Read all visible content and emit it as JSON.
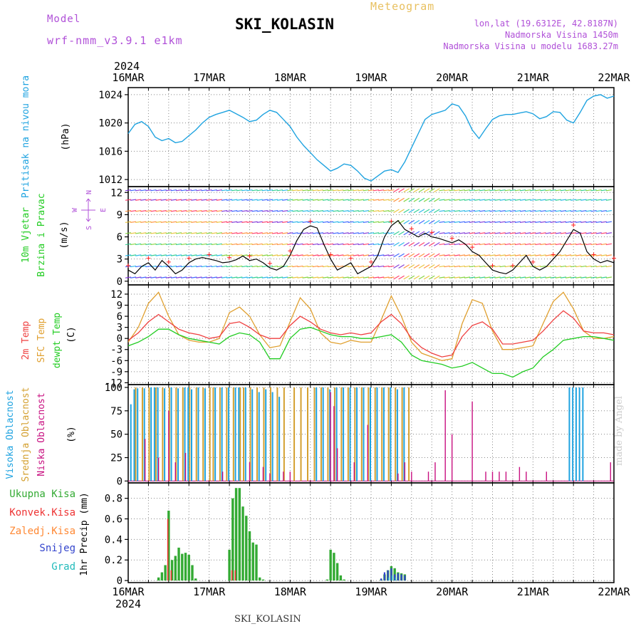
{
  "header": {
    "model_label": "Model",
    "model_value": "wrf-nmm_v3.9.1 e1km",
    "title": "SKI_KOLASIN",
    "meteogram": "Meteogram",
    "lonlat": "lon,lat (19.6312E, 42.8187N)",
    "altitude": "Nadmorska Visina 1450m",
    "model_altitude": "Nadmorska Visina u modelu 1683.27m",
    "footer_station": "SKI_KOLASIN",
    "watermark": "made by Angel"
  },
  "colors": {
    "pressure": "#1fa3e0",
    "wind_speed": "#000000",
    "wind_gust_marker": "#ff2020",
    "temp_2m": "#ef4040",
    "temp_sfc": "#e0a030",
    "dewpoint": "#22cc22",
    "cloud_high": "#1fa3e0",
    "cloud_mid": "#d4a030",
    "cloud_low": "#c81080",
    "precip_total": "#33aa33",
    "precip_conv": "#ee3333",
    "precip_frozen": "#ff8833",
    "precip_snow": "#3344cc",
    "precip_hail": "#22bbbb",
    "label_violet": "#b050d8"
  },
  "chart_data": [
    {
      "type": "line",
      "panel": "pressure",
      "title": "",
      "ylabel_lines": [
        "Pritisak na nivou mora",
        "(hPa)"
      ],
      "ylim": [
        1011,
        1025
      ],
      "yticks": [
        "1012",
        "1016",
        "1020",
        "1024"
      ],
      "ytick_values": [
        1012,
        1016,
        1020,
        1024
      ],
      "x_labels_top": [
        "16MAR",
        "17MAR",
        "18MAR",
        "19MAR",
        "20MAR",
        "21MAR",
        "22MAR"
      ],
      "x_year_top": "2024",
      "grid": true,
      "series": [
        {
          "name": "",
          "x_hours": [
            0,
            2,
            4,
            6,
            8,
            10,
            12,
            14,
            16,
            18,
            20,
            22,
            24,
            26,
            28,
            30,
            32,
            34,
            36,
            38,
            40,
            42,
            44,
            46,
            48,
            50,
            52,
            54,
            56,
            58,
            60,
            62,
            64,
            66,
            68,
            70,
            72,
            74,
            76,
            78,
            80,
            82,
            84,
            86,
            88,
            90,
            92,
            94,
            96,
            98,
            100,
            102,
            104,
            106,
            108,
            110,
            112,
            114,
            116,
            118,
            120,
            122,
            124,
            126,
            128,
            130,
            132,
            134,
            136,
            138,
            140,
            142,
            144
          ],
          "values": [
            1018.5,
            1019.8,
            1020.2,
            1019.5,
            1018.0,
            1017.5,
            1017.8,
            1017.2,
            1017.4,
            1018.2,
            1019.0,
            1020.0,
            1020.8,
            1021.2,
            1021.5,
            1021.8,
            1021.3,
            1020.8,
            1020.2,
            1020.4,
            1021.2,
            1021.8,
            1021.5,
            1020.5,
            1019.5,
            1018.0,
            1016.8,
            1015.8,
            1014.8,
            1014.0,
            1013.2,
            1013.6,
            1014.2,
            1014.0,
            1013.2,
            1012.2,
            1011.8,
            1012.5,
            1013.2,
            1013.4,
            1013.0,
            1014.5,
            1016.5,
            1018.5,
            1020.5,
            1021.2,
            1021.5,
            1021.8,
            1022.7,
            1022.4,
            1021.0,
            1019.0,
            1017.8,
            1019.2,
            1020.5,
            1021.0,
            1021.2,
            1021.2,
            1021.4,
            1021.6,
            1021.3,
            1020.6,
            1020.9,
            1021.6,
            1021.5,
            1020.4,
            1020.0,
            1021.5,
            1023.2,
            1023.8,
            1024.0,
            1023.5,
            1023.8
          ]
        }
      ]
    },
    {
      "type": "line",
      "panel": "wind",
      "title": "",
      "ylabel_lines": [
        "10m Vjetar",
        "Brzina i Pravac",
        "(m/s)"
      ],
      "compass": {
        "n": "N",
        "s": "S",
        "e": "E",
        "w": "W"
      },
      "ylim": [
        -0.5,
        12.8
      ],
      "yticks": [
        "0",
        "3",
        "6",
        "9",
        "12"
      ],
      "ytick_values": [
        0,
        3,
        6,
        9,
        12
      ],
      "grid": true,
      "series": [
        {
          "name": "",
          "x_hours": [
            0,
            2,
            4,
            6,
            8,
            10,
            12,
            14,
            16,
            18,
            20,
            22,
            24,
            26,
            28,
            30,
            32,
            34,
            36,
            38,
            40,
            42,
            44,
            46,
            48,
            50,
            52,
            54,
            56,
            58,
            60,
            62,
            64,
            66,
            68,
            70,
            72,
            74,
            76,
            78,
            80,
            82,
            84,
            86,
            88,
            90,
            92,
            94,
            96,
            98,
            100,
            102,
            104,
            106,
            108,
            110,
            112,
            114,
            116,
            118,
            120,
            122,
            124,
            126,
            128,
            130,
            132,
            134,
            136,
            138,
            140,
            142,
            144
          ],
          "values": [
            1.5,
            1.0,
            2.0,
            2.5,
            1.5,
            2.8,
            2.0,
            1.0,
            1.5,
            2.5,
            3.0,
            3.2,
            3.0,
            2.8,
            2.5,
            2.6,
            2.9,
            3.4,
            2.8,
            3.0,
            2.5,
            1.8,
            1.5,
            2.0,
            3.5,
            5.5,
            7.0,
            7.5,
            7.2,
            5.0,
            3.0,
            1.5,
            2.0,
            2.5,
            1.0,
            1.5,
            2.0,
            3.5,
            6.0,
            7.5,
            8.2,
            7.0,
            6.5,
            6.0,
            6.5,
            6.0,
            5.8,
            5.5,
            5.2,
            5.6,
            5.0,
            4.0,
            3.5,
            2.5,
            1.5,
            1.2,
            1.0,
            1.5,
            2.5,
            3.5,
            2.0,
            1.5,
            2.0,
            3.0,
            4.0,
            5.5,
            7.0,
            6.5,
            4.0,
            3.0,
            2.5,
            2.8,
            2.5
          ]
        }
      ]
    },
    {
      "type": "line",
      "panel": "temperature",
      "title": "",
      "ylabel_lines": [
        "2m Temp",
        "SFC Temp",
        "dewpt Temp",
        "(C)"
      ],
      "ylim": [
        -12.5,
        14.5
      ],
      "yticks": [
        "-12",
        "-9",
        "-6",
        "-3",
        "0",
        "3",
        "6",
        "9",
        "12"
      ],
      "ytick_values": [
        -12,
        -9,
        -6,
        -3,
        0,
        3,
        6,
        9,
        12
      ],
      "grid": true,
      "x_hours": [
        0,
        3,
        6,
        9,
        12,
        15,
        18,
        21,
        24,
        27,
        30,
        33,
        36,
        39,
        42,
        45,
        48,
        51,
        54,
        57,
        60,
        63,
        66,
        69,
        72,
        75,
        78,
        81,
        84,
        87,
        90,
        93,
        96,
        99,
        102,
        105,
        108,
        111,
        114,
        117,
        120,
        123,
        126,
        129,
        132,
        135,
        138,
        141,
        144
      ],
      "series": [
        {
          "name": "2m Temp",
          "values": [
            -0.5,
            1.5,
            4.5,
            6.5,
            4.5,
            2.5,
            1.5,
            1.0,
            0.0,
            0.5,
            4.0,
            4.5,
            3.0,
            1.0,
            0.0,
            0.0,
            3.5,
            6.0,
            4.5,
            2.5,
            1.5,
            1.0,
            1.5,
            1.0,
            1.5,
            4.5,
            6.5,
            4.0,
            0.0,
            -2.5,
            -4.0,
            -5.0,
            -4.5,
            0.5,
            3.5,
            4.5,
            2.5,
            -1.5,
            -1.5,
            -1.0,
            -0.5,
            2.0,
            5.0,
            7.5,
            5.5,
            2.0,
            1.5,
            1.5,
            1.0
          ]
        },
        {
          "name": "SFC Temp",
          "values": [
            -1.0,
            3.0,
            9.5,
            12.5,
            6.0,
            1.0,
            -0.5,
            -1.0,
            -1.0,
            0.0,
            7.0,
            8.5,
            6.0,
            1.0,
            -2.5,
            -2.0,
            4.5,
            11.0,
            8.0,
            1.5,
            -1.0,
            -1.5,
            -0.5,
            -1.0,
            -1.0,
            5.0,
            11.5,
            6.0,
            -1.0,
            -4.0,
            -5.0,
            -6.0,
            -5.5,
            4.0,
            10.5,
            9.5,
            2.0,
            -3.0,
            -3.0,
            -2.5,
            -2.0,
            4.0,
            10.0,
            12.5,
            8.0,
            2.0,
            0.0,
            0.0,
            0.5
          ]
        },
        {
          "name": "dewpt Temp",
          "values": [
            -2.0,
            -1.0,
            0.5,
            2.5,
            2.5,
            1.0,
            0.0,
            -0.5,
            -1.0,
            -1.5,
            0.5,
            1.5,
            1.0,
            -1.0,
            -5.5,
            -5.5,
            0.0,
            2.5,
            3.0,
            2.0,
            1.0,
            0.5,
            0.5,
            0.0,
            0.0,
            0.5,
            1.0,
            -1.0,
            -4.5,
            -6.0,
            -6.5,
            -7.0,
            -8.0,
            -7.5,
            -6.5,
            -8.0,
            -9.5,
            -9.5,
            -10.5,
            -9.0,
            -8.0,
            -5.0,
            -3.0,
            -0.5,
            0.0,
            0.5,
            0.5,
            0.0,
            -0.5
          ]
        }
      ]
    },
    {
      "type": "bar",
      "panel": "clouds",
      "title": "",
      "ylabel_lines": [
        "Visoka Oblacnost",
        "Srednja Oblacnost",
        "Niska Oblacnost",
        "(%)"
      ],
      "ylim": [
        -2,
        103
      ],
      "yticks": [
        "0",
        "25",
        "50",
        "75",
        "100"
      ],
      "ytick_values": [
        0,
        25,
        50,
        75,
        100
      ],
      "grid": true,
      "series": [
        {
          "name": "Visoka Oblacnost",
          "x_hours": [
            1,
            2,
            3,
            5,
            7,
            8,
            9,
            11,
            13,
            15,
            17,
            18,
            19,
            21,
            23,
            26,
            28,
            30,
            32,
            33,
            35,
            37,
            39,
            41,
            43,
            45,
            56,
            58,
            60,
            62,
            64,
            66,
            68,
            70,
            72,
            74,
            76,
            78,
            80,
            82,
            131,
            132,
            133,
            134,
            135
          ],
          "values": [
            82,
            98,
            99,
            99,
            100,
            100,
            100,
            99,
            100,
            99,
            100,
            100,
            98,
            100,
            99,
            100,
            100,
            100,
            100,
            100,
            100,
            98,
            95,
            98,
            95,
            90,
            100,
            100,
            98,
            100,
            100,
            100,
            100,
            100,
            100,
            100,
            100,
            100,
            98,
            100,
            100,
            100,
            100,
            100,
            100
          ]
        },
        {
          "name": "Srednja Oblacnost",
          "x_hours": [
            2,
            4,
            6,
            8,
            10,
            12,
            14,
            16,
            18,
            20,
            22,
            24,
            25,
            27,
            29,
            31,
            33,
            34,
            36,
            38,
            40,
            42,
            44,
            46,
            49,
            51,
            53,
            55,
            57,
            59,
            61,
            63,
            65,
            67,
            69,
            71,
            73,
            75,
            77,
            79,
            81,
            83
          ],
          "values": [
            100,
            100,
            100,
            100,
            100,
            100,
            100,
            100,
            100,
            100,
            100,
            100,
            100,
            100,
            100,
            100,
            100,
            100,
            100,
            100,
            100,
            100,
            100,
            100,
            100,
            100,
            100,
            100,
            100,
            100,
            100,
            100,
            100,
            100,
            100,
            100,
            100,
            100,
            100,
            100,
            100,
            100
          ]
        },
        {
          "name": "Niska Oblacnost",
          "x_hours": [
            5,
            9,
            12,
            14,
            17,
            28,
            36,
            40,
            42,
            46,
            48,
            60,
            61,
            62,
            67,
            71,
            80,
            82,
            84,
            89,
            91,
            94,
            96,
            102,
            106,
            108,
            110,
            112,
            116,
            118,
            124,
            143
          ],
          "values": [
            45,
            25,
            75,
            20,
            30,
            10,
            20,
            15,
            8,
            10,
            10,
            95,
            80,
            35,
            20,
            60,
            8,
            20,
            10,
            10,
            20,
            97,
            50,
            85,
            10,
            10,
            10,
            10,
            15,
            10,
            10,
            20
          ]
        }
      ]
    },
    {
      "type": "bar",
      "panel": "precipitation",
      "title": "",
      "ylabel_lines": [
        "1hr Precip (mm)"
      ],
      "legend": [
        "Ukupna Kisa",
        "Konvek.Kisa",
        "Zaledj.Kisa",
        "Snijeg",
        "Grad"
      ],
      "ylim": [
        -0.02,
        0.95
      ],
      "yticks": [
        "0",
        "0.2",
        "0.4",
        "0.6",
        "0.8"
      ],
      "ytick_values": [
        0,
        0.2,
        0.4,
        0.6,
        0.8
      ],
      "x_labels_bottom": [
        "16MAR",
        "17MAR",
        "18MAR",
        "19MAR",
        "20MAR",
        "21MAR",
        "22MAR"
      ],
      "x_year_bottom": "2024",
      "grid": true,
      "series": [
        {
          "name": "Ukupna Kisa",
          "x_hours": [
            9,
            10,
            11,
            12,
            13,
            14,
            15,
            16,
            17,
            18,
            19,
            20,
            30,
            31,
            32,
            33,
            34,
            35,
            36,
            37,
            38,
            39,
            40,
            59,
            60,
            61,
            62,
            63,
            64,
            75,
            76,
            77,
            78,
            79,
            80,
            81,
            82
          ],
          "values": [
            0.03,
            0.08,
            0.15,
            0.68,
            0.2,
            0.24,
            0.32,
            0.26,
            0.27,
            0.25,
            0.15,
            0.02,
            0.3,
            0.8,
            0.9,
            0.9,
            0.72,
            0.63,
            0.48,
            0.37,
            0.35,
            0.03,
            0.01,
            0.01,
            0.3,
            0.27,
            0.17,
            0.05,
            0.01,
            0.01,
            0.06,
            0.1,
            0.14,
            0.12,
            0.08,
            0.07,
            0.06
          ]
        },
        {
          "name": "Konvek.Kisa",
          "x_hours": [
            12,
            13,
            31,
            32
          ],
          "values": [
            0.6,
            0.1,
            0.1,
            0.1
          ]
        },
        {
          "name": "Snijeg",
          "x_hours": [
            75,
            76,
            77,
            78,
            79,
            80,
            81,
            82
          ],
          "values": [
            0.02,
            0.08,
            0.1,
            0.12,
            0.06,
            0.07,
            0.06,
            0.05
          ]
        },
        {
          "name": "Grad",
          "x_hours": [
            77,
            78,
            79
          ],
          "values": [
            0.03,
            0.05,
            0.03
          ]
        }
      ]
    }
  ]
}
